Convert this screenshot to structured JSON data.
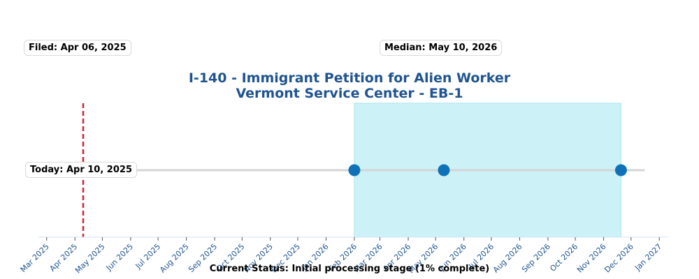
{
  "title": {
    "line1": "I-140 - Immigrant Petition for Alien Worker",
    "line2": "Vermont Service Center - EB-1"
  },
  "annotations": {
    "filed": "Filed: Apr 06, 2025",
    "median": "Median: May 10, 2026",
    "today": "Today: Apr 10, 2025"
  },
  "status": "Current Status: Initial processing stage (1% complete)",
  "colors": {
    "title": "#1f5490",
    "today_line": "#d62038",
    "points": "#0f72b8",
    "range_fill": "#ccf2f8",
    "range_edge": "#a8e2ef",
    "track": "#d4d4d4",
    "tick_label": "#1f5490"
  },
  "chart_data": {
    "type": "scatter",
    "x_axis": {
      "type": "date",
      "range": [
        "2025-02-20",
        "2027-01-10"
      ],
      "ticks": [
        "Mar 2025",
        "Apr 2025",
        "May 2025",
        "Jun 2025",
        "Jul 2025",
        "Aug 2025",
        "Sep 2025",
        "Oct 2025",
        "Nov 2025",
        "Dec 2025",
        "Jan 2026",
        "Feb 2026",
        "Mar 2026",
        "Apr 2026",
        "May 2026",
        "Jun 2026",
        "Jul 2026",
        "Aug 2026",
        "Sep 2026",
        "Oct 2026",
        "Nov 2026",
        "Dec 2026",
        "Jan 2027"
      ]
    },
    "track": {
      "start": "2025-04-06",
      "end": "2026-12-16"
    },
    "points": [
      {
        "date": "2026-02-01"
      },
      {
        "date": "2026-05-10"
      },
      {
        "date": "2026-11-20"
      }
    ],
    "shaded_range": {
      "start": "2026-02-01",
      "end": "2026-11-20"
    },
    "today_line": "2025-04-10",
    "grid": false,
    "legend": "none"
  }
}
